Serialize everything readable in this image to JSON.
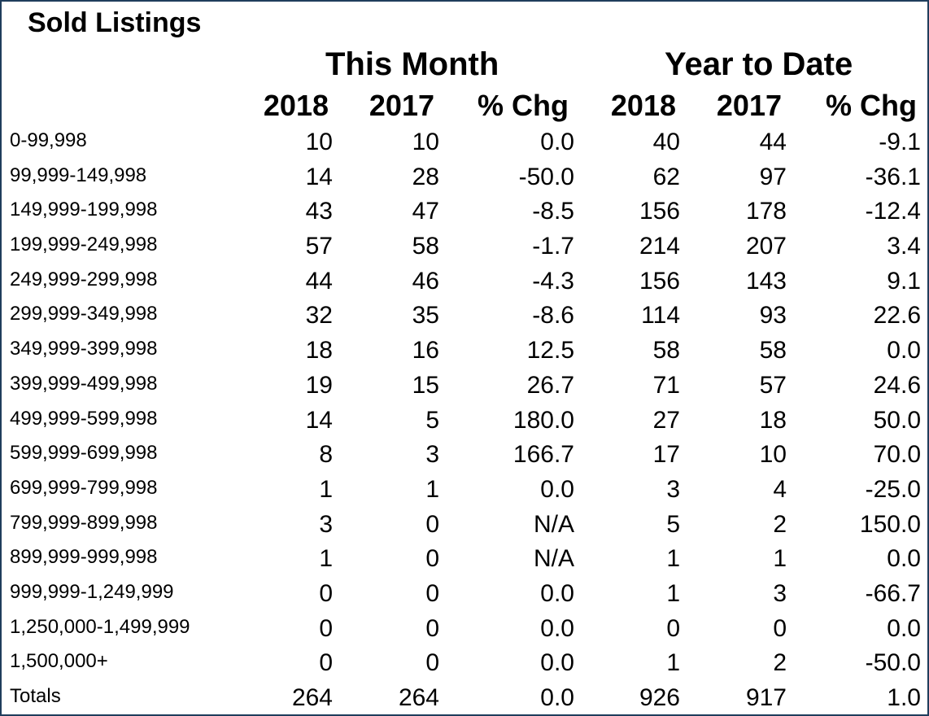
{
  "title": "Sold Listings",
  "groups": {
    "this_month": "This Month",
    "year_to_date": "Year to Date"
  },
  "columns": [
    "2018",
    "2017",
    "% Chg",
    "2018",
    "2017",
    "% Chg"
  ],
  "rows": [
    {
      "label": "0-99,998",
      "values": [
        "10",
        "10",
        "0.0",
        "40",
        "44",
        "-9.1"
      ]
    },
    {
      "label": "99,999-149,998",
      "values": [
        "14",
        "28",
        "-50.0",
        "62",
        "97",
        "-36.1"
      ]
    },
    {
      "label": "149,999-199,998",
      "values": [
        "43",
        "47",
        "-8.5",
        "156",
        "178",
        "-12.4"
      ]
    },
    {
      "label": "199,999-249,998",
      "values": [
        "57",
        "58",
        "-1.7",
        "214",
        "207",
        "3.4"
      ]
    },
    {
      "label": "249,999-299,998",
      "values": [
        "44",
        "46",
        "-4.3",
        "156",
        "143",
        "9.1"
      ]
    },
    {
      "label": "299,999-349,998",
      "values": [
        "32",
        "35",
        "-8.6",
        "114",
        "93",
        "22.6"
      ]
    },
    {
      "label": "349,999-399,998",
      "values": [
        "18",
        "16",
        "12.5",
        "58",
        "58",
        "0.0"
      ]
    },
    {
      "label": "399,999-499,998",
      "values": [
        "19",
        "15",
        "26.7",
        "71",
        "57",
        "24.6"
      ]
    },
    {
      "label": "499,999-599,998",
      "values": [
        "14",
        "5",
        "180.0",
        "27",
        "18",
        "50.0"
      ]
    },
    {
      "label": "599,999-699,998",
      "values": [
        "8",
        "3",
        "166.7",
        "17",
        "10",
        "70.0"
      ]
    },
    {
      "label": "699,999-799,998",
      "values": [
        "1",
        "1",
        "0.0",
        "3",
        "4",
        "-25.0"
      ]
    },
    {
      "label": "799,999-899,998",
      "values": [
        "3",
        "0",
        "N/A",
        "5",
        "2",
        "150.0"
      ]
    },
    {
      "label": "899,999-999,998",
      "values": [
        "1",
        "0",
        "N/A",
        "1",
        "1",
        "0.0"
      ]
    },
    {
      "label": "999,999-1,249,999",
      "values": [
        "0",
        "0",
        "0.0",
        "1",
        "3",
        "-66.7"
      ]
    },
    {
      "label": "1,250,000-1,499,999",
      "values": [
        "0",
        "0",
        "0.0",
        "0",
        "0",
        "0.0"
      ]
    },
    {
      "label": "1,500,000+",
      "values": [
        "0",
        "0",
        "0.0",
        "1",
        "2",
        "-50.0"
      ]
    },
    {
      "label": "Totals",
      "values": [
        "264",
        "264",
        "0.0",
        "926",
        "917",
        "1.0"
      ]
    }
  ],
  "colors": {
    "border": "#1f3d5c",
    "text": "#000000",
    "background": "#ffffff"
  }
}
